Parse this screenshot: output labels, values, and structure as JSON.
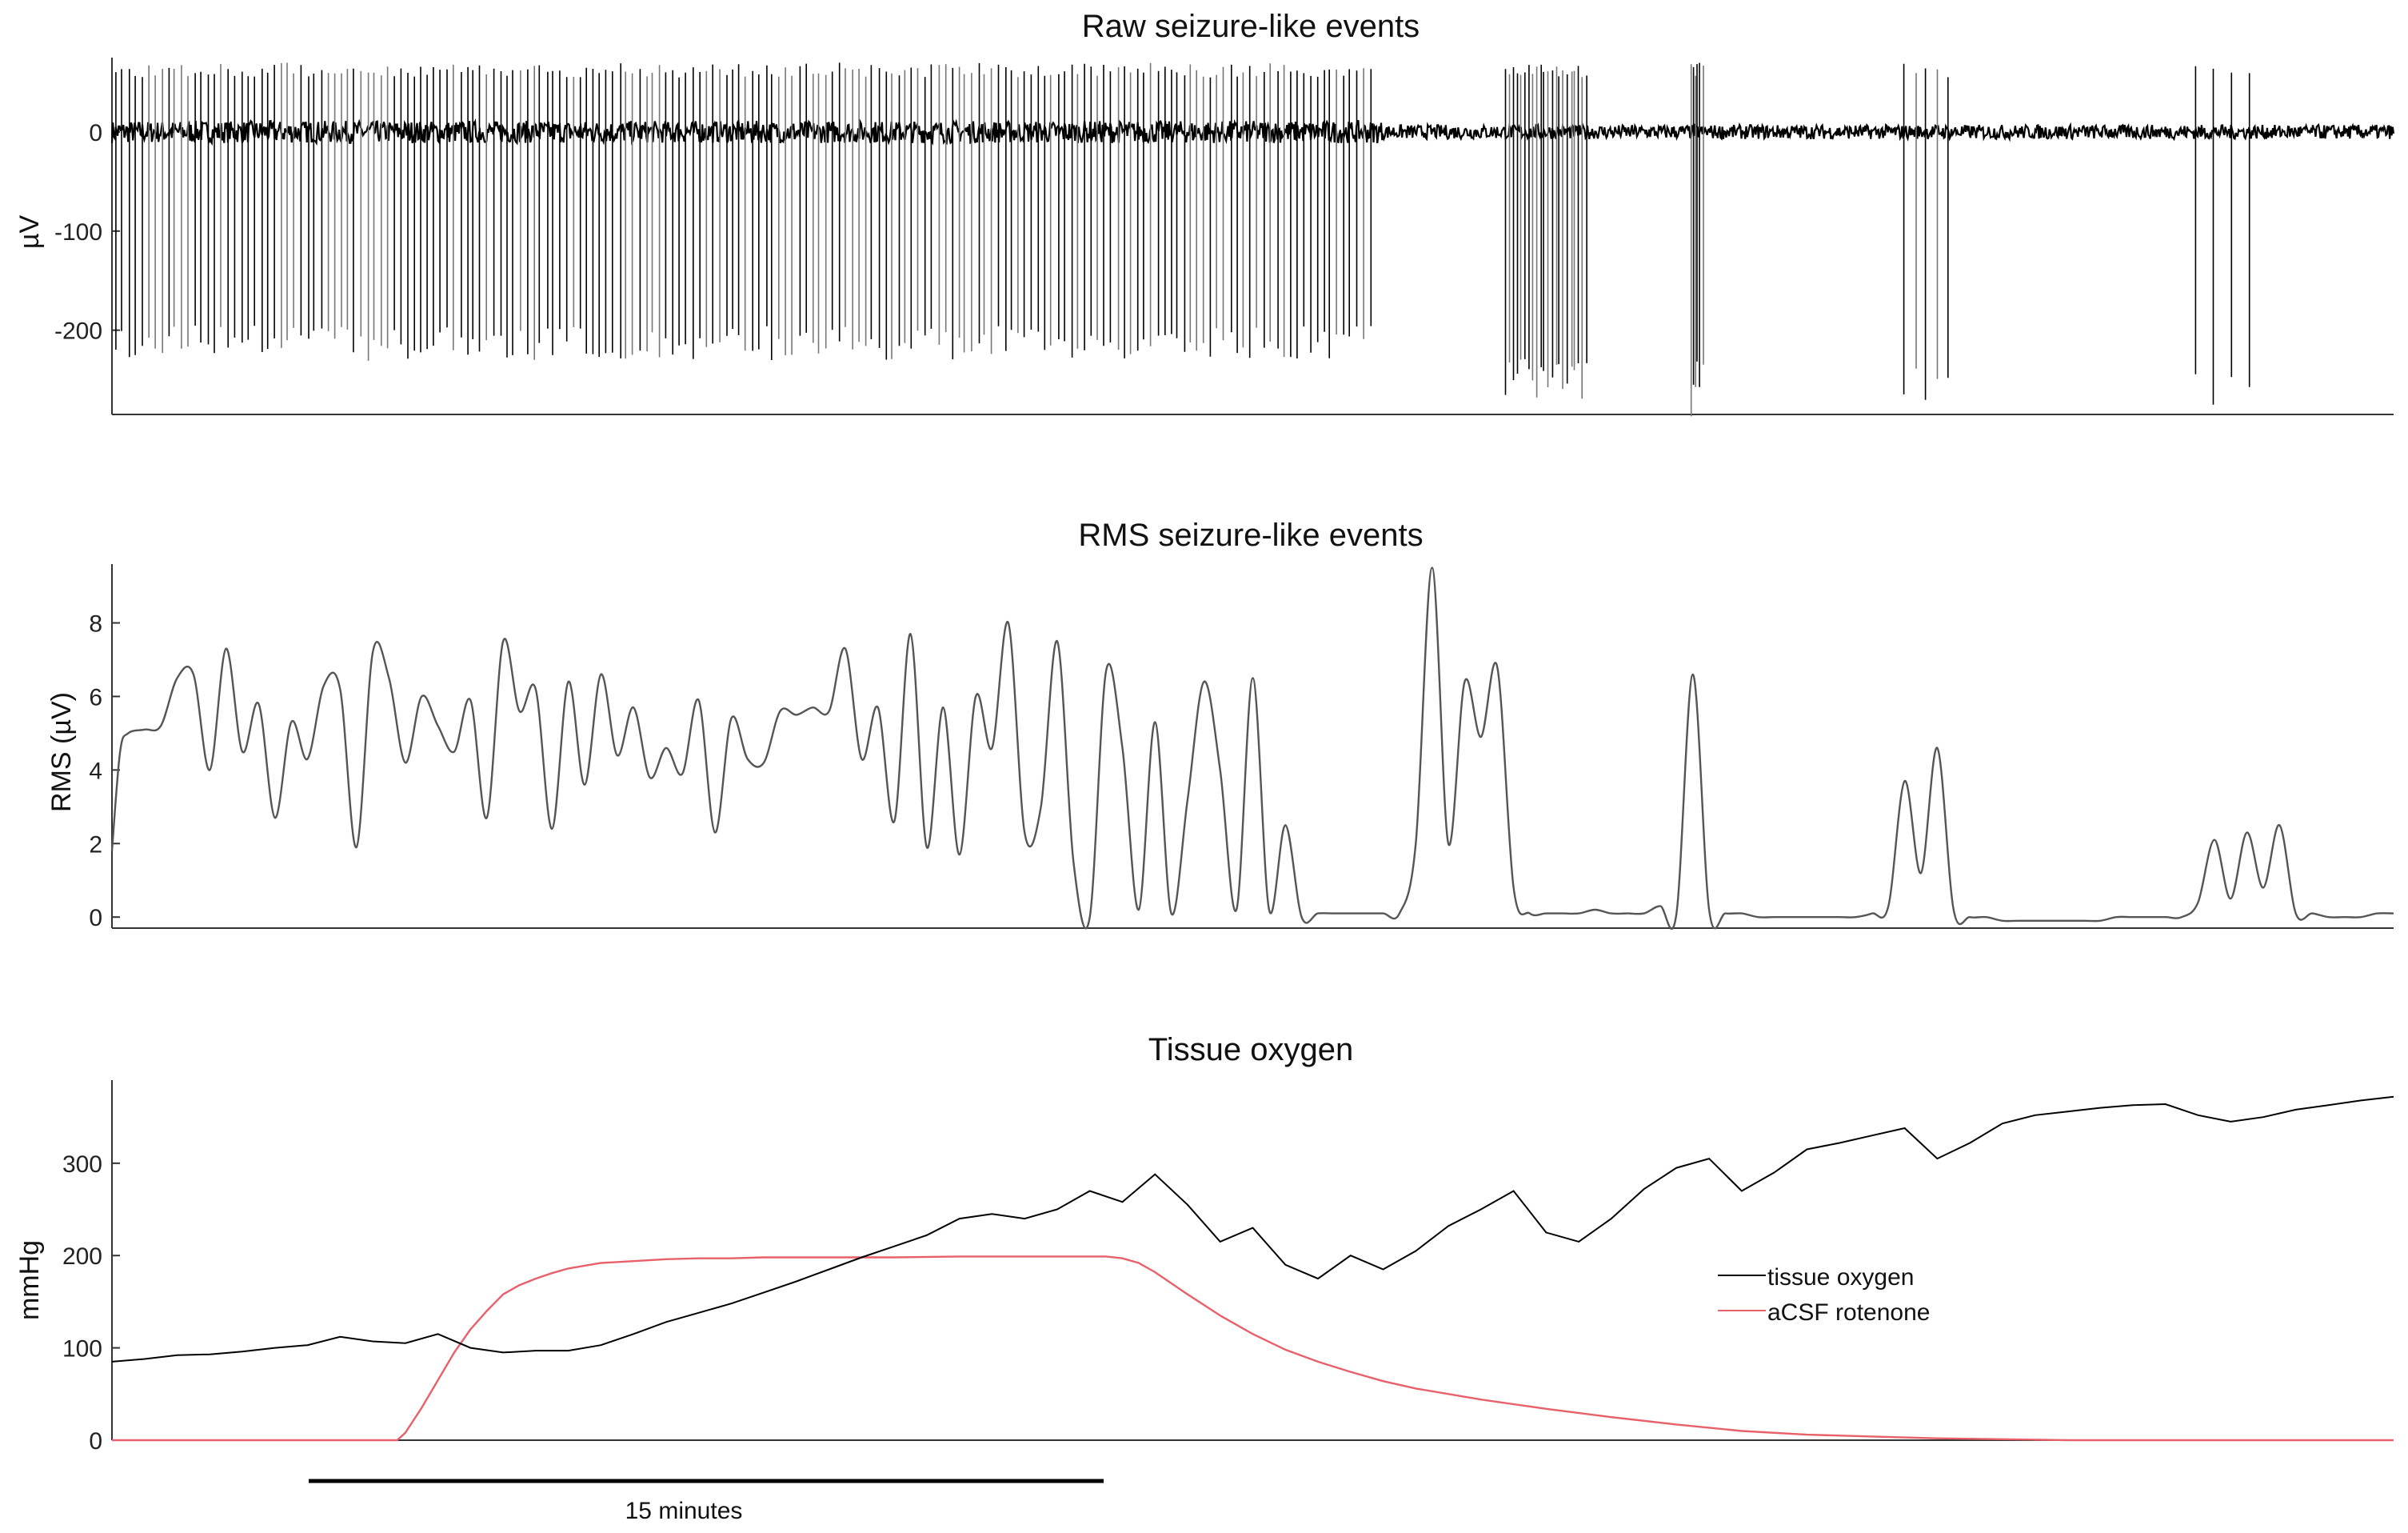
{
  "figure": {
    "scale_label": "15 minutes",
    "scale_minutes": 15
  },
  "colors": {
    "trace": "#000000",
    "rms": "#555555",
    "acsf": "#e8616a",
    "axis": "#333333"
  },
  "chart_data": [
    {
      "id": "raw",
      "type": "line",
      "title": "Raw seizure-like events",
      "ylabel": "µV",
      "xlabel": "",
      "xlim": [
        0,
        140
      ],
      "ylim": [
        -285,
        75
      ],
      "yticks": [
        0,
        -100,
        -200
      ],
      "ytick_labels": [
        "0",
        "-100",
        "-200"
      ],
      "grid": false,
      "series": [
        {
          "name": "raw",
          "spikes": [
            {
              "start": 0.2,
              "end": 77.2,
              "count": 190,
              "amp": -222
            },
            {
              "start": 85.5,
              "end": 90.5,
              "count": 22,
              "amp": -260
            },
            {
              "start": 97.0,
              "end": 97.6,
              "count": 5,
              "amp": -255
            },
            {
              "start": 96.9,
              "end": 96.9,
              "count": 1,
              "amp": -285
            },
            {
              "start": 110.0,
              "end": 112.6,
              "count": 5,
              "amp": -265
            },
            {
              "start": 127.8,
              "end": 131.2,
              "count": 4,
              "amp": -265
            }
          ],
          "baseline_noise": 8
        }
      ]
    },
    {
      "id": "rms",
      "type": "line",
      "title": "RMS seizure-like events",
      "ylabel": "RMS (µV)",
      "xlabel": "",
      "xlim": [
        0,
        140
      ],
      "ylim": [
        -0.3,
        9.6
      ],
      "yticks": [
        0,
        2,
        4,
        6,
        8
      ],
      "ytick_labels": [
        "0",
        "2",
        "4",
        "6",
        "8"
      ],
      "grid": false,
      "series": [
        {
          "name": "RMS",
          "x": [
            0,
            0.5,
            1,
            2,
            3,
            4,
            5,
            6,
            7,
            8,
            9,
            10,
            11,
            12,
            13,
            14,
            15,
            16,
            17,
            18,
            19,
            20,
            21,
            22,
            23,
            24,
            25,
            26,
            27,
            28,
            29,
            30,
            31,
            32,
            33,
            34,
            35,
            36,
            37,
            38,
            39,
            40,
            41,
            42,
            43,
            44,
            45,
            46,
            47,
            48,
            49,
            50,
            51,
            52,
            53,
            54,
            55,
            56,
            57,
            58,
            59,
            60,
            61,
            62,
            63,
            64,
            65,
            66,
            67,
            68,
            69,
            70,
            71,
            72,
            73,
            74,
            75,
            76,
            77,
            78,
            79,
            80,
            81,
            82,
            83,
            84,
            85,
            86,
            87,
            88,
            89,
            90,
            91,
            92,
            93,
            94,
            95,
            96,
            97,
            98,
            99,
            100,
            101,
            102,
            103,
            104,
            105,
            106,
            107,
            108,
            109,
            110,
            111,
            112,
            113,
            114,
            115,
            116,
            117,
            118,
            119,
            120,
            121,
            122,
            123,
            124,
            125,
            126,
            127,
            128,
            129,
            130,
            131,
            132,
            133,
            134,
            135,
            136,
            137,
            138,
            139,
            140
          ],
          "y": [
            1.8,
            4.5,
            5.0,
            5.1,
            5.2,
            6.5,
            6.6,
            4.0,
            7.3,
            4.5,
            5.8,
            2.7,
            5.3,
            4.3,
            6.3,
            6.2,
            1.9,
            7.2,
            6.5,
            4.2,
            6.0,
            5.2,
            4.5,
            5.9,
            2.7,
            7.5,
            5.6,
            6.2,
            2.4,
            6.4,
            3.6,
            6.6,
            4.4,
            5.7,
            3.8,
            4.6,
            3.9,
            5.9,
            2.3,
            5.4,
            4.3,
            4.2,
            5.6,
            5.5,
            5.7,
            5.6,
            7.3,
            4.3,
            5.7,
            2.6,
            7.7,
            1.9,
            5.7,
            1.7,
            6.0,
            4.6,
            8.0,
            2.3,
            3.0,
            7.5,
            1.5,
            0.0,
            6.7,
            4.6,
            0.2,
            5.3,
            0.1,
            3.2,
            6.4,
            4.0,
            0.2,
            6.5,
            0.2,
            2.5,
            0.0,
            0.1,
            0.1,
            0.1,
            0.1,
            0.1,
            0.1,
            2.0,
            9.5,
            2.0,
            6.4,
            4.9,
            6.8,
            0.8,
            0.1,
            0.1,
            0.1,
            0.1,
            0.2,
            0.1,
            0.1,
            0.1,
            0.3,
            0.1,
            6.6,
            0.2,
            0.1,
            0.1,
            0.0,
            0.0,
            0.0,
            0.0,
            0.0,
            0.0,
            0.0,
            0.1,
            0.3,
            3.7,
            1.2,
            4.6,
            0.2,
            0.0,
            0.0,
            -0.1,
            -0.1,
            -0.1,
            -0.1,
            -0.1,
            -0.1,
            -0.1,
            0.0,
            0.0,
            0.0,
            0.0,
            0.0,
            0.4,
            2.1,
            0.5,
            2.3,
            0.8,
            2.5,
            0.1,
            0.1,
            0.0,
            0.0,
            0.0,
            0.1,
            0.1
          ]
        }
      ]
    },
    {
      "id": "oxygen",
      "type": "line",
      "title": "Tissue oxygen",
      "ylabel": "mmHg",
      "xlabel": "",
      "xlim": [
        0,
        140
      ],
      "ylim": [
        0,
        390
      ],
      "yticks": [
        0,
        100,
        200,
        300
      ],
      "ytick_labels": [
        "0",
        "100",
        "200",
        "300"
      ],
      "grid": false,
      "legend": "right",
      "series": [
        {
          "name": "tissue oxygen",
          "x": [
            0,
            2,
            4,
            6,
            8,
            10,
            12,
            14,
            16,
            18,
            20,
            22,
            24,
            26,
            28,
            30,
            32,
            34,
            36,
            38,
            40,
            42,
            44,
            46,
            48,
            50,
            52,
            54,
            56,
            58,
            60,
            62,
            64,
            66,
            68,
            70,
            72,
            74,
            76,
            78,
            80,
            82,
            84,
            86,
            88,
            90,
            92,
            94,
            96,
            98,
            100,
            102,
            104,
            106,
            108,
            110,
            112,
            114,
            116,
            118,
            120,
            122,
            124,
            126,
            128,
            130,
            132,
            134,
            136,
            138,
            140
          ],
          "y": [
            85,
            88,
            92,
            93,
            96,
            100,
            103,
            112,
            107,
            105,
            115,
            100,
            95,
            97,
            97,
            103,
            115,
            128,
            138,
            148,
            160,
            172,
            185,
            198,
            210,
            222,
            240,
            245,
            240,
            250,
            270,
            258,
            288,
            255,
            215,
            230,
            190,
            175,
            200,
            185,
            205,
            232,
            250,
            270,
            225,
            215,
            240,
            272,
            295,
            305,
            270,
            290,
            315,
            322,
            330,
            338,
            305,
            322,
            343,
            352,
            356,
            360,
            363,
            364,
            352,
            345,
            350,
            358,
            363,
            368,
            372
          ]
        },
        {
          "name": "aCSF rotenone",
          "x": [
            0,
            16,
            17.5,
            18,
            19,
            20,
            21,
            22,
            23,
            24,
            25,
            26,
            27,
            28,
            30,
            32,
            34,
            36,
            38,
            40,
            44,
            48,
            52,
            56,
            60,
            61,
            62,
            63,
            64,
            66,
            68,
            70,
            72,
            74,
            76,
            78,
            80,
            84,
            88,
            92,
            96,
            100,
            104,
            108,
            112,
            116,
            120,
            124,
            128,
            132,
            136,
            140
          ],
          "y": [
            0,
            0,
            0,
            8,
            35,
            65,
            95,
            120,
            140,
            158,
            168,
            175,
            181,
            186,
            192,
            194,
            196,
            197,
            197,
            198,
            198,
            198,
            199,
            199,
            199,
            199,
            197,
            192,
            182,
            158,
            135,
            115,
            98,
            85,
            74,
            64,
            56,
            44,
            34,
            25,
            17,
            10,
            6,
            4,
            2,
            1,
            0,
            0,
            0,
            0,
            0,
            0
          ]
        }
      ]
    }
  ]
}
